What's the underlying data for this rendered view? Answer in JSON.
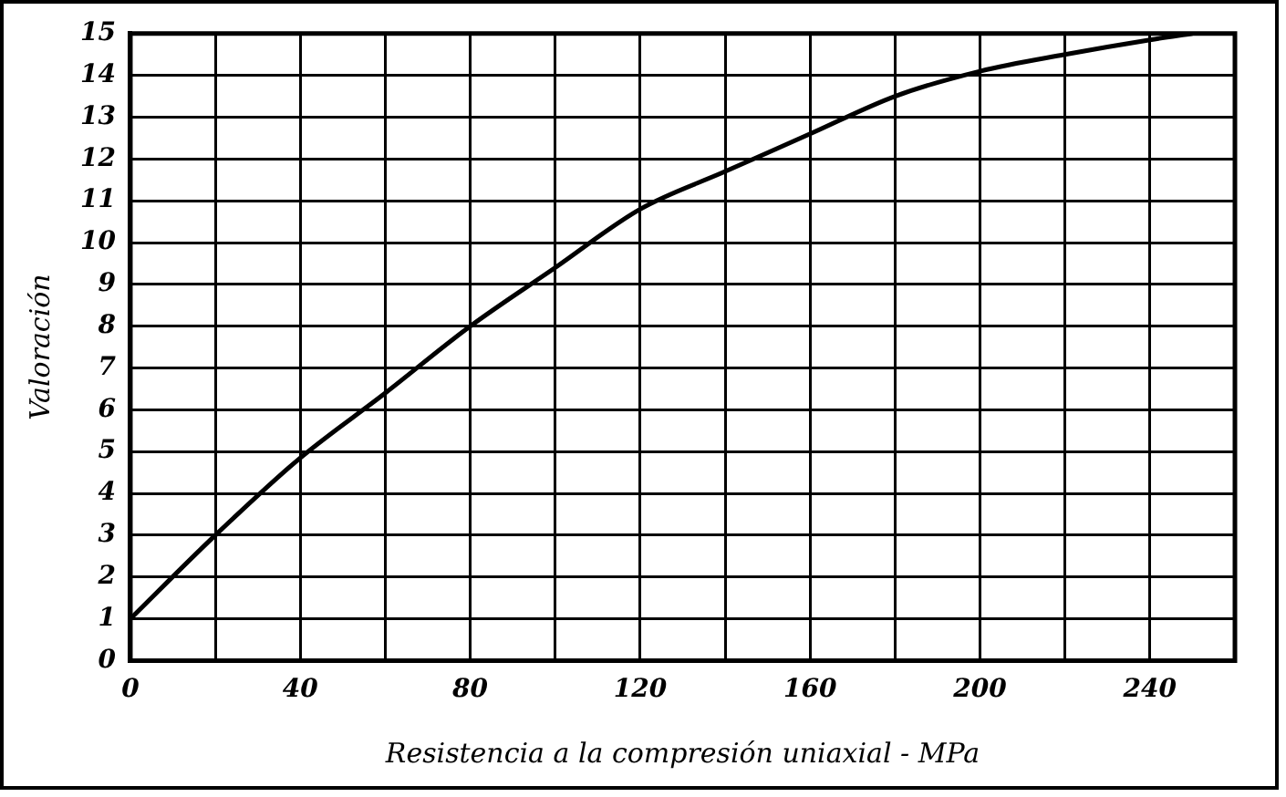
{
  "chart_data": {
    "type": "line",
    "xlabel": "Resistencia a la compresión uniaxial - MPa",
    "ylabel": "Valoración",
    "x": [
      0,
      20,
      40,
      60,
      80,
      100,
      120,
      140,
      160,
      180,
      200,
      220,
      240,
      250
    ],
    "series": [
      {
        "color": "#000000",
        "values": [
          1,
          3,
          4.85,
          6.4,
          8,
          9.4,
          10.8,
          11.7,
          12.6,
          13.5,
          14.1,
          14.5,
          14.85,
          15
        ]
      }
    ],
    "xlim": [
      0,
      260
    ],
    "xticks": [
      0,
      {
        "value": 20,
        "label": null
      },
      40,
      {
        "value": 60,
        "label": null
      },
      80,
      {
        "value": 100,
        "label": null
      },
      120,
      {
        "value": 140,
        "label": null
      },
      160,
      {
        "value": 180,
        "label": null
      },
      200,
      {
        "value": 220,
        "label": null
      },
      240,
      {
        "value": 260,
        "label": null
      }
    ],
    "ylim": [
      0,
      15
    ],
    "yticks": [
      0,
      1,
      2,
      3,
      4,
      5,
      6,
      7,
      8,
      9,
      10,
      11,
      12,
      13,
      14,
      15
    ],
    "grid": true,
    "legend": false,
    "marker": "none",
    "line_style": "solid"
  }
}
